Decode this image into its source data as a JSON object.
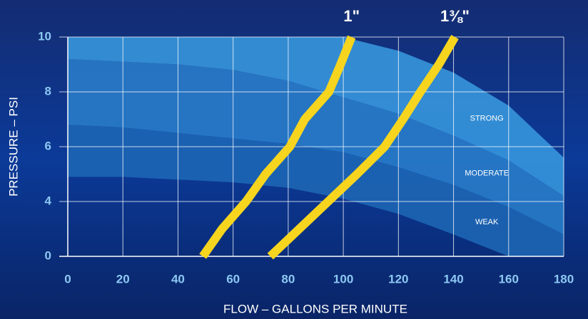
{
  "chart_data": {
    "type": "line",
    "xlabel": "FLOW – GALLONS PER MINUTE",
    "ylabel": "PRESSURE – PSI",
    "xlim": [
      0,
      180
    ],
    "xticks": [
      0,
      20,
      40,
      60,
      80,
      100,
      120,
      140,
      160,
      180
    ],
    "ylim": [
      0,
      10
    ],
    "yticks": [
      0,
      4,
      6,
      8,
      10
    ],
    "grid": true,
    "bands": {
      "x": [
        0,
        20,
        40,
        60,
        80,
        100,
        120,
        140,
        160,
        180
      ],
      "items": [
        {
          "name": "STRONG",
          "color": "#3a9be0",
          "upper": [
            10,
            10,
            10,
            10,
            10,
            10,
            9.5,
            8.7,
            7.5,
            5.6
          ],
          "lower": [
            9.2,
            9.1,
            9.0,
            8.8,
            8.4,
            7.8,
            7.2,
            6.4,
            5.5,
            4.2
          ]
        },
        {
          "name": "MODERATE",
          "color": "#2a80cc",
          "upper": [
            9.2,
            9.1,
            9.0,
            8.8,
            8.4,
            7.8,
            7.2,
            6.4,
            5.5,
            4.2
          ],
          "lower": [
            6.8,
            6.7,
            6.5,
            6.3,
            6.1,
            5.8,
            5.25,
            4.6,
            3.6,
            1.6
          ]
        },
        {
          "name": "WEAK",
          "color": "#1f68b6",
          "upper": [
            6.8,
            6.7,
            6.5,
            6.3,
            6.1,
            5.8,
            5.25,
            4.6,
            3.6,
            1.6
          ],
          "lower": [
            4.9,
            4.9,
            4.8,
            4.7,
            4.5,
            4.1,
            3.1,
            1.6,
            0,
            0
          ]
        }
      ]
    },
    "series": [
      {
        "name": "1\"",
        "color": "#f7d51e",
        "x": [
          49,
          56,
          64.7,
          71.8,
          80.6,
          86,
          94.8,
          99,
          103
        ],
        "values": [
          0,
          2,
          4,
          5,
          6,
          7,
          8,
          9,
          10
        ]
      },
      {
        "name": "1⅜\"",
        "color": "#f7d51e",
        "x": [
          73.5,
          84,
          94.5,
          105,
          115,
          121.7,
          128,
          134.7,
          140.5
        ],
        "values": [
          0,
          2,
          4,
          5,
          6,
          7,
          8,
          9,
          10
        ]
      }
    ]
  }
}
